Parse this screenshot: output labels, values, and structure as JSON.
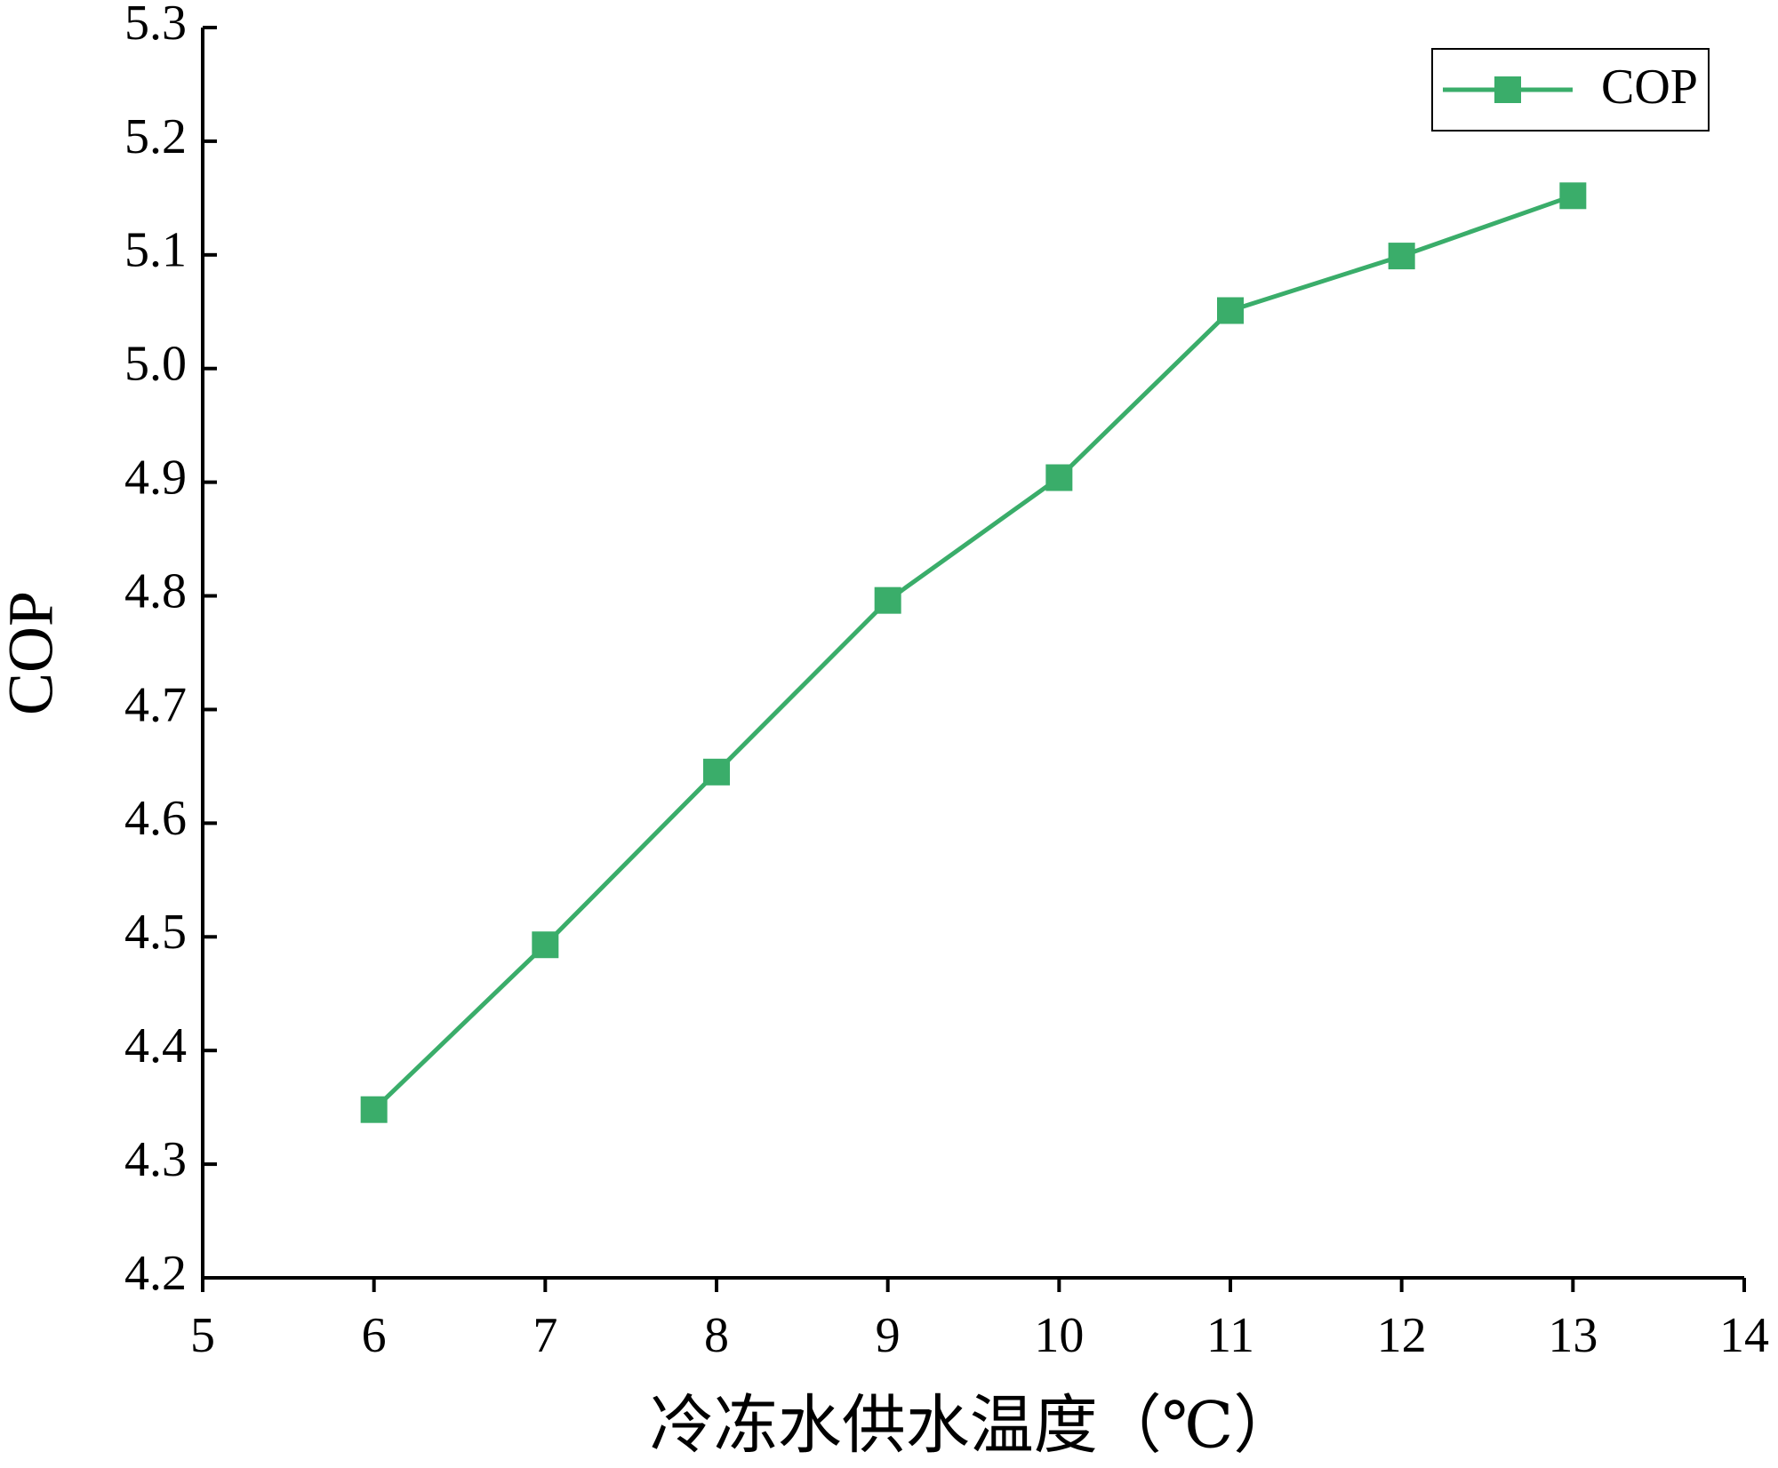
{
  "chart_data": {
    "type": "line",
    "x_label": "冷冻水供水温度（℃）",
    "y_label": "COP",
    "x": [
      6,
      7,
      8,
      9,
      10,
      11,
      12,
      13
    ],
    "series": [
      {
        "name": "COP",
        "color": "#3aad6a",
        "values": [
          4.348,
          4.493,
          4.645,
          4.796,
          4.904,
          5.051,
          5.099,
          5.152
        ]
      }
    ],
    "xlim": [
      5,
      14
    ],
    "xticks": [
      5,
      6,
      7,
      8,
      9,
      10,
      11,
      12,
      13,
      14
    ],
    "ylim": [
      4.2,
      5.3
    ],
    "yticks": [
      4.2,
      4.3,
      4.4,
      4.5,
      4.6,
      4.7,
      4.8,
      4.9,
      {
        "value": 5,
        "label": "5.0"
      },
      5.1,
      5.2,
      5.3
    ],
    "legend": "top-right",
    "grid": false
  }
}
